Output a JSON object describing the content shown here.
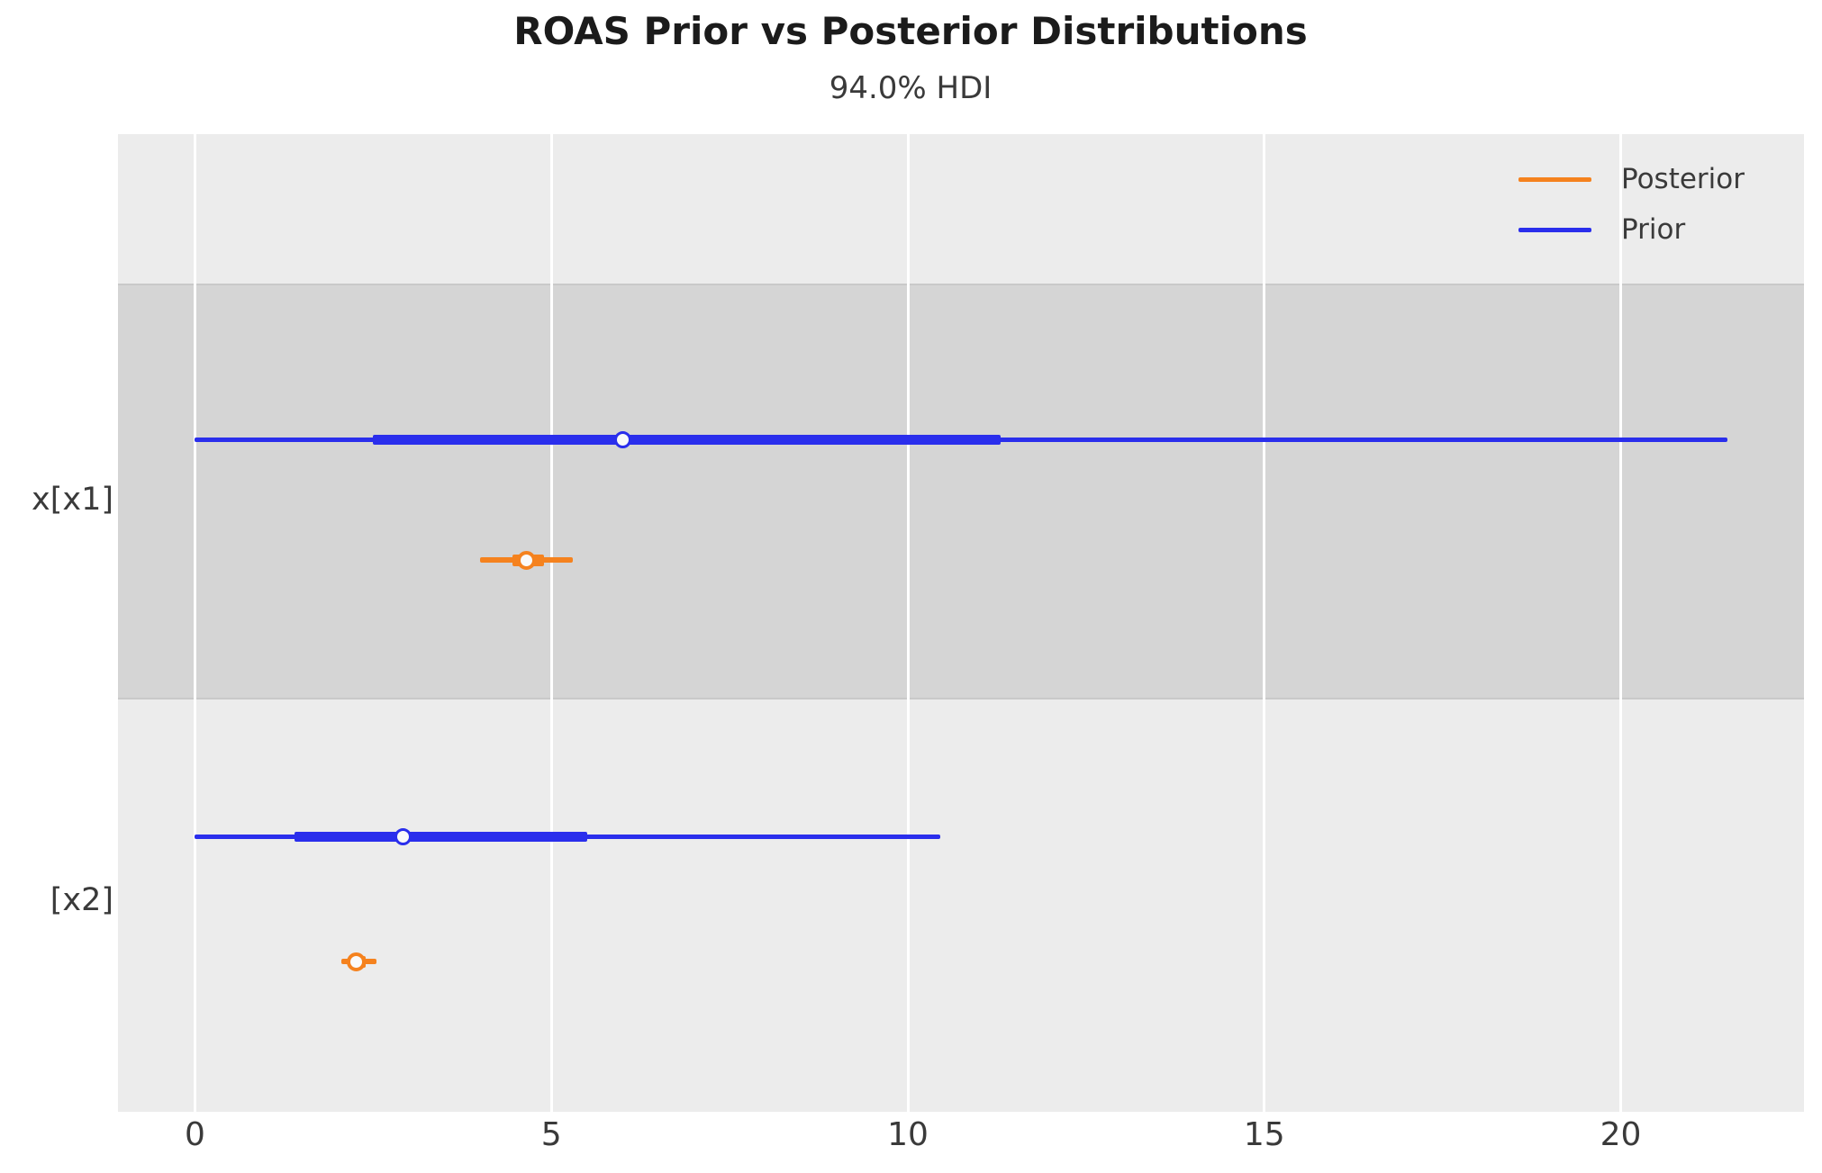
{
  "chart_data": {
    "type": "forest",
    "title": "ROAS Prior vs Posterior Distributions",
    "subtitle": "94.0% HDI",
    "hdi_prob": 0.94,
    "xlabel": "",
    "ylabel": "",
    "xlim": [
      -1.08,
      22.57
    ],
    "xticks": [
      0,
      5,
      10,
      15,
      20
    ],
    "grid": "vertical-white",
    "legend_position": "upper right",
    "legend": [
      {
        "label": "Posterior",
        "color": "#f5821e"
      },
      {
        "label": "Prior",
        "color": "#2a2eec"
      }
    ],
    "variables": [
      {
        "label": "x[x1]",
        "prior": {
          "hdi": [
            0.0,
            21.5
          ],
          "thick": [
            2.5,
            11.3
          ],
          "median": 6.0
        },
        "posterior": {
          "hdi": [
            4.0,
            5.3
          ],
          "thick": [
            4.45,
            4.9
          ],
          "median": 4.65
        }
      },
      {
        "label": "[x2]",
        "prior": {
          "hdi": [
            0.0,
            10.45
          ],
          "thick": [
            1.4,
            5.5
          ],
          "median": 2.92
        },
        "posterior": {
          "hdi": [
            2.05,
            2.55
          ],
          "thick": [
            2.15,
            2.4
          ],
          "median": 2.26
        }
      }
    ],
    "colors": {
      "posterior": "#f5821e",
      "prior": "#2a2eec",
      "plot_background": "#ececec",
      "alt_band": "#d5d5d5",
      "alt_band_edge": "#c9c9c9",
      "gridline": "#ffffff",
      "marker_face": "#fafafa",
      "text": "#3a3a3a",
      "title_text": "#1b1b1b"
    }
  }
}
